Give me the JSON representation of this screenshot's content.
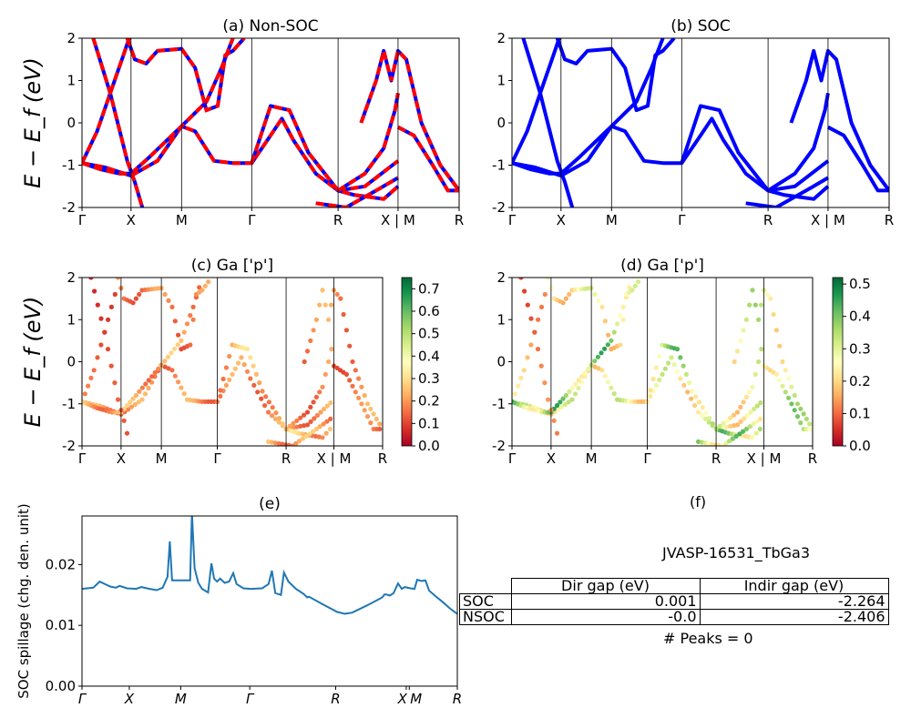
{
  "chart_data": [
    {
      "id": "a",
      "type": "line",
      "title": "(a) Non-SOC",
      "ylabel": "E − E_f (eV)",
      "ylim": [
        -2,
        2
      ],
      "yticks": [
        -2,
        -1,
        0,
        1,
        2
      ],
      "xticks": [
        {
          "label": "Γ",
          "k": 0
        },
        {
          "label": "X",
          "k": 0.13
        },
        {
          "label": "M",
          "k": 0.264
        },
        {
          "label": "Γ",
          "k": 0.45
        },
        {
          "label": "R",
          "k": 0.679
        },
        {
          "label": "X | M",
          "k": 0.838
        },
        {
          "label": "R",
          "k": 1
        }
      ],
      "colors": {
        "solid": "#0000ff",
        "dashed": "#ff0000"
      }
    },
    {
      "id": "b",
      "type": "line",
      "title": "(b) SOC",
      "ylim": [
        -2,
        2
      ],
      "yticks": [
        -2,
        -1,
        0,
        1,
        2
      ],
      "xticks": [
        {
          "label": "Γ",
          "k": 0
        },
        {
          "label": "X",
          "k": 0.13
        },
        {
          "label": "M",
          "k": 0.264
        },
        {
          "label": "Γ",
          "k": 0.45
        },
        {
          "label": "R",
          "k": 0.679
        },
        {
          "label": "X | M",
          "k": 0.838
        },
        {
          "label": "R",
          "k": 1
        }
      ],
      "colors": {
        "solid": "#0000ff"
      }
    },
    {
      "id": "c",
      "type": "scatter",
      "title": "(c)  Ga ['p']",
      "ylabel": "E − E_f (eV)",
      "ylim": [
        -2,
        2
      ],
      "yticks": [
        -2,
        -1,
        0,
        1,
        2
      ],
      "xticks": [
        {
          "label": "Γ",
          "k": 0
        },
        {
          "label": "X",
          "k": 0.13
        },
        {
          "label": "M",
          "k": 0.264
        },
        {
          "label": "Γ",
          "k": 0.45
        },
        {
          "label": "R",
          "k": 0.679
        },
        {
          "label": "X | M",
          "k": 0.838
        },
        {
          "label": "R",
          "k": 1
        }
      ],
      "colorbar": {
        "range": [
          0,
          0.75
        ],
        "ticks": [
          "0.0",
          "0.1",
          "0.2",
          "0.3",
          "0.4",
          "0.5",
          "0.6",
          "0.7"
        ],
        "colormap": "RdYlGn"
      },
      "band_weights": [
        0.22,
        0.15,
        0.25,
        0.12,
        0.2,
        0.28,
        0.2,
        0.22,
        0.18,
        0.25
      ]
    },
    {
      "id": "d",
      "type": "scatter",
      "title": "(d) Ga ['p']",
      "ylim": [
        -2,
        2
      ],
      "yticks": [
        -2,
        -1,
        0,
        1,
        2
      ],
      "xticks": [
        {
          "label": "Γ",
          "k": 0
        },
        {
          "label": "X",
          "k": 0.13
        },
        {
          "label": "M",
          "k": 0.264
        },
        {
          "label": "Γ",
          "k": 0.45
        },
        {
          "label": "R",
          "k": 0.679
        },
        {
          "label": "X | M",
          "k": 0.838
        },
        {
          "label": "R",
          "k": 1
        }
      ],
      "colorbar": {
        "range": [
          0,
          0.52
        ],
        "ticks": [
          "0.0",
          "0.1",
          "0.2",
          "0.3",
          "0.4",
          "0.5"
        ],
        "colormap": "RdYlGn"
      },
      "band_weights": [
        0.3,
        0.2,
        0.4,
        0.12,
        0.28,
        0.38,
        0.3,
        0.33,
        0.36,
        0.38
      ]
    },
    {
      "id": "e",
      "type": "line",
      "title": "(e)",
      "ylabel": "SOC spillage (chg. den. unit)",
      "ylim": [
        0,
        0.028
      ],
      "yticks": [
        "0.00",
        "0.01",
        "0.02"
      ],
      "xticks": [
        {
          "label": "Γ",
          "k": 0
        },
        {
          "label": "X",
          "k": 0.126
        },
        {
          "label": "M",
          "k": 0.263
        },
        {
          "label": "Γ",
          "k": 0.447
        },
        {
          "label": "R",
          "k": 0.676
        },
        {
          "label": "X",
          "k": 0.864
        },
        {
          "label": "M",
          "k": 0.872
        },
        {
          "label": "R",
          "k": 1
        }
      ],
      "color": "#1f77b4",
      "points": [
        [
          0,
          0.016
        ],
        [
          0.03,
          0.0162
        ],
        [
          0.047,
          0.0172
        ],
        [
          0.075,
          0.0164
        ],
        [
          0.09,
          0.0162
        ],
        [
          0.1,
          0.0165
        ],
        [
          0.12,
          0.0161
        ],
        [
          0.145,
          0.016
        ],
        [
          0.158,
          0.0163
        ],
        [
          0.18,
          0.016
        ],
        [
          0.199,
          0.0158
        ],
        [
          0.215,
          0.0162
        ],
        [
          0.228,
          0.018
        ],
        [
          0.234,
          0.0238
        ],
        [
          0.24,
          0.0174
        ],
        [
          0.288,
          0.0174
        ],
        [
          0.293,
          0.0285
        ],
        [
          0.3,
          0.0194
        ],
        [
          0.31,
          0.017
        ],
        [
          0.32,
          0.016
        ],
        [
          0.336,
          0.0154
        ],
        [
          0.345,
          0.0202
        ],
        [
          0.352,
          0.0177
        ],
        [
          0.36,
          0.0172
        ],
        [
          0.368,
          0.0177
        ],
        [
          0.38,
          0.017
        ],
        [
          0.392,
          0.0172
        ],
        [
          0.403,
          0.0186
        ],
        [
          0.412,
          0.0168
        ],
        [
          0.43,
          0.0161
        ],
        [
          0.45,
          0.016
        ],
        [
          0.48,
          0.0161
        ],
        [
          0.497,
          0.0168
        ],
        [
          0.506,
          0.019
        ],
        [
          0.515,
          0.0153
        ],
        [
          0.53,
          0.015
        ],
        [
          0.538,
          0.0187
        ],
        [
          0.55,
          0.0172
        ],
        [
          0.57,
          0.016
        ],
        [
          0.59,
          0.0152
        ],
        [
          0.6,
          0.0146
        ],
        [
          0.605,
          0.0147
        ],
        [
          0.64,
          0.0135
        ],
        [
          0.68,
          0.0122
        ],
        [
          0.7,
          0.0119
        ],
        [
          0.72,
          0.0121
        ],
        [
          0.76,
          0.0133
        ],
        [
          0.8,
          0.0146
        ],
        [
          0.806,
          0.0151
        ],
        [
          0.82,
          0.0149
        ],
        [
          0.83,
          0.0153
        ],
        [
          0.811,
          0.0151
        ],
        [
          0.842,
          0.0169
        ],
        [
          0.852,
          0.016
        ],
        [
          0.86,
          0.0163
        ],
        [
          0.875,
          0.0161
        ],
        [
          0.886,
          0.016
        ],
        [
          0.893,
          0.0175
        ],
        [
          0.905,
          0.0173
        ],
        [
          0.915,
          0.0174
        ],
        [
          0.925,
          0.0157
        ],
        [
          0.94,
          0.0149
        ],
        [
          0.96,
          0.0139
        ],
        [
          0.98,
          0.0128
        ],
        [
          0.995,
          0.0121
        ],
        [
          1,
          0.0119
        ]
      ]
    }
  ],
  "bands": [
    [
      [
        0,
        -0.95
      ],
      [
        0.06,
        -1.05
      ],
      [
        0.13,
        -1.25
      ],
      [
        0.2,
        -0.9
      ],
      [
        0.264,
        -0.08
      ],
      [
        0.3,
        -0.2
      ],
      [
        0.35,
        -0.9
      ],
      [
        0.4,
        -0.95
      ],
      [
        0.45,
        -0.95
      ],
      [
        0.5,
        -0.3
      ],
      [
        0.53,
        0.1
      ],
      [
        0.56,
        -0.4
      ],
      [
        0.62,
        -1.2
      ],
      [
        0.679,
        -1.6
      ],
      [
        0.75,
        -1.5
      ],
      [
        0.838,
        -0.9
      ]
    ],
    [
      [
        0,
        -0.95
      ],
      [
        0.04,
        -0.2
      ],
      [
        0.075,
        0.7
      ],
      [
        0.11,
        1.6
      ],
      [
        0.125,
        2
      ]
    ],
    [
      [
        0,
        -0.95
      ],
      [
        0.05,
        -1.1
      ],
      [
        0.1,
        -1.2
      ],
      [
        0.13,
        -1.2
      ],
      [
        0.18,
        -0.8
      ],
      [
        0.264,
        -0.08
      ],
      [
        0.33,
        0.5
      ],
      [
        0.37,
        1.3
      ],
      [
        0.4,
        2
      ]
    ],
    [
      [
        0.03,
        2
      ],
      [
        0.075,
        0.7
      ],
      [
        0.12,
        -0.9
      ],
      [
        0.14,
        -1.4
      ],
      [
        0.16,
        -2
      ]
    ],
    [
      [
        0.12,
        2
      ],
      [
        0.14,
        1.5
      ],
      [
        0.17,
        1.4
      ],
      [
        0.2,
        1.7
      ],
      [
        0.264,
        1.75
      ],
      [
        0.3,
        1.3
      ],
      [
        0.33,
        0.3
      ],
      [
        0.36,
        0.4
      ],
      [
        0.38,
        1.6
      ],
      [
        0.4,
        1.7
      ],
      [
        0.43,
        2
      ]
    ],
    [
      [
        0.45,
        -0.95
      ],
      [
        0.5,
        0.4
      ],
      [
        0.55,
        0.3
      ],
      [
        0.6,
        -0.7
      ],
      [
        0.679,
        -1.6
      ],
      [
        0.72,
        -1.7
      ],
      [
        0.8,
        -1.8
      ],
      [
        0.838,
        -1.5
      ]
    ],
    [
      [
        0.679,
        -1.6
      ],
      [
        0.75,
        -1.2
      ],
      [
        0.8,
        -0.6
      ],
      [
        0.83,
        0.3
      ],
      [
        0.838,
        0.7
      ]
    ],
    [
      [
        0.74,
        0
      ],
      [
        0.78,
        1
      ],
      [
        0.8,
        1.7
      ],
      [
        0.82,
        1.0
      ],
      [
        0.838,
        1.7
      ],
      [
        0.86,
        1.5
      ],
      [
        0.9,
        0
      ],
      [
        0.95,
        -1
      ],
      [
        1,
        -1.6
      ]
    ],
    [
      [
        0.838,
        -0.1
      ],
      [
        0.88,
        -0.3
      ],
      [
        0.93,
        -1
      ],
      [
        0.97,
        -1.6
      ],
      [
        1,
        -1.6
      ]
    ],
    [
      [
        0.62,
        -1.9
      ],
      [
        0.7,
        -2
      ],
      [
        0.78,
        -1.6
      ],
      [
        0.838,
        -1.3
      ]
    ]
  ],
  "info": {
    "material": "JVASP-16531_TbGa3",
    "figure_f_title": "(f)",
    "table": {
      "headers": [
        "",
        "Dir gap (eV)",
        "Indir gap (eV)"
      ],
      "rows": [
        {
          "label": "SOC",
          "dir": "0.001",
          "indir": "-2.264"
        },
        {
          "label": "NSOC",
          "dir": "-0.0",
          "indir": "-2.406"
        }
      ]
    },
    "peaks": "# Peaks = 0"
  }
}
